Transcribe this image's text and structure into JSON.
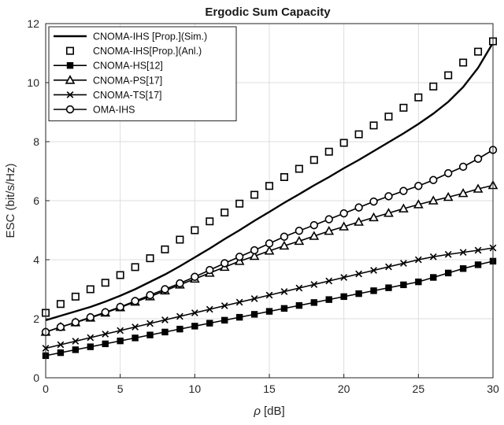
{
  "chart_data": {
    "type": "line",
    "title": "Ergodic Sum Capacity",
    "xlabel_symbol": "ρ",
    "xlabel_unit": "[dB]",
    "ylabel": "ESC (bit/s/Hz)",
    "xlim": [
      0,
      30
    ],
    "ylim": [
      0,
      12
    ],
    "xticks": [
      "0",
      "5",
      "10",
      "15",
      "20",
      "25",
      "30"
    ],
    "yticks": [
      "0",
      "2",
      "4",
      "6",
      "8",
      "10",
      "12"
    ],
    "grid": true,
    "legend_position": "top-left",
    "x": [
      0,
      1,
      2,
      3,
      4,
      5,
      6,
      7,
      8,
      9,
      10,
      11,
      12,
      13,
      14,
      15,
      16,
      17,
      18,
      19,
      20,
      21,
      22,
      23,
      24,
      25,
      26,
      27,
      28,
      29,
      30
    ],
    "series": [
      {
        "name": "CNOMA-IHS [Prop.](Sim.)",
        "style": "line",
        "color": "#000000",
        "values": [
          1.95,
          2.1,
          2.25,
          2.4,
          2.58,
          2.78,
          3.0,
          3.25,
          3.5,
          3.78,
          4.08,
          4.38,
          4.7,
          5.0,
          5.32,
          5.62,
          5.93,
          6.22,
          6.52,
          6.8,
          7.1,
          7.38,
          7.68,
          7.98,
          8.28,
          8.6,
          8.95,
          9.35,
          9.85,
          10.5,
          11.35
        ]
      },
      {
        "name": "CNOMA-IHS[Prop.](Anl.)",
        "style": "marker",
        "marker": "square",
        "color": "#000000",
        "values": [
          2.2,
          2.5,
          2.75,
          3.0,
          3.22,
          3.48,
          3.75,
          4.05,
          4.35,
          4.68,
          5.0,
          5.3,
          5.6,
          5.9,
          6.2,
          6.5,
          6.8,
          7.08,
          7.38,
          7.66,
          7.96,
          8.25,
          8.55,
          8.85,
          9.15,
          9.5,
          9.87,
          10.25,
          10.68,
          11.05,
          11.4
        ]
      },
      {
        "name": "CNOMA-HS[12]",
        "style": "line+marker",
        "marker": "filled-square",
        "color": "#000000",
        "values": [
          0.75,
          0.85,
          0.95,
          1.05,
          1.15,
          1.25,
          1.35,
          1.45,
          1.55,
          1.65,
          1.75,
          1.85,
          1.95,
          2.05,
          2.15,
          2.25,
          2.35,
          2.45,
          2.55,
          2.65,
          2.75,
          2.85,
          2.95,
          3.05,
          3.15,
          3.25,
          3.4,
          3.55,
          3.7,
          3.83,
          3.95
        ]
      },
      {
        "name": "CNOMA-PS[17]",
        "style": "line+marker",
        "marker": "triangle",
        "color": "#000000",
        "values": [
          1.55,
          1.72,
          1.87,
          2.03,
          2.2,
          2.38,
          2.57,
          2.75,
          2.95,
          3.15,
          3.35,
          3.55,
          3.75,
          3.95,
          4.12,
          4.3,
          4.47,
          4.63,
          4.8,
          4.97,
          5.12,
          5.28,
          5.43,
          5.58,
          5.73,
          5.87,
          6.0,
          6.12,
          6.25,
          6.4,
          6.52
        ]
      },
      {
        "name": "CNOMA-TS[17]",
        "style": "line+marker",
        "marker": "x",
        "color": "#000000",
        "values": [
          1.0,
          1.12,
          1.24,
          1.36,
          1.48,
          1.6,
          1.72,
          1.84,
          1.96,
          2.08,
          2.2,
          2.32,
          2.44,
          2.56,
          2.68,
          2.8,
          2.92,
          3.04,
          3.16,
          3.28,
          3.4,
          3.52,
          3.64,
          3.76,
          3.88,
          4.0,
          4.1,
          4.18,
          4.25,
          4.32,
          4.4
        ]
      },
      {
        "name": "OMA-IHS",
        "style": "line+marker",
        "marker": "circle",
        "color": "#000000",
        "values": [
          1.55,
          1.72,
          1.88,
          2.05,
          2.22,
          2.4,
          2.6,
          2.8,
          3.0,
          3.2,
          3.42,
          3.65,
          3.88,
          4.1,
          4.32,
          4.55,
          4.78,
          4.98,
          5.17,
          5.37,
          5.57,
          5.77,
          5.97,
          6.15,
          6.33,
          6.5,
          6.7,
          6.93,
          7.15,
          7.42,
          7.72
        ]
      }
    ]
  }
}
